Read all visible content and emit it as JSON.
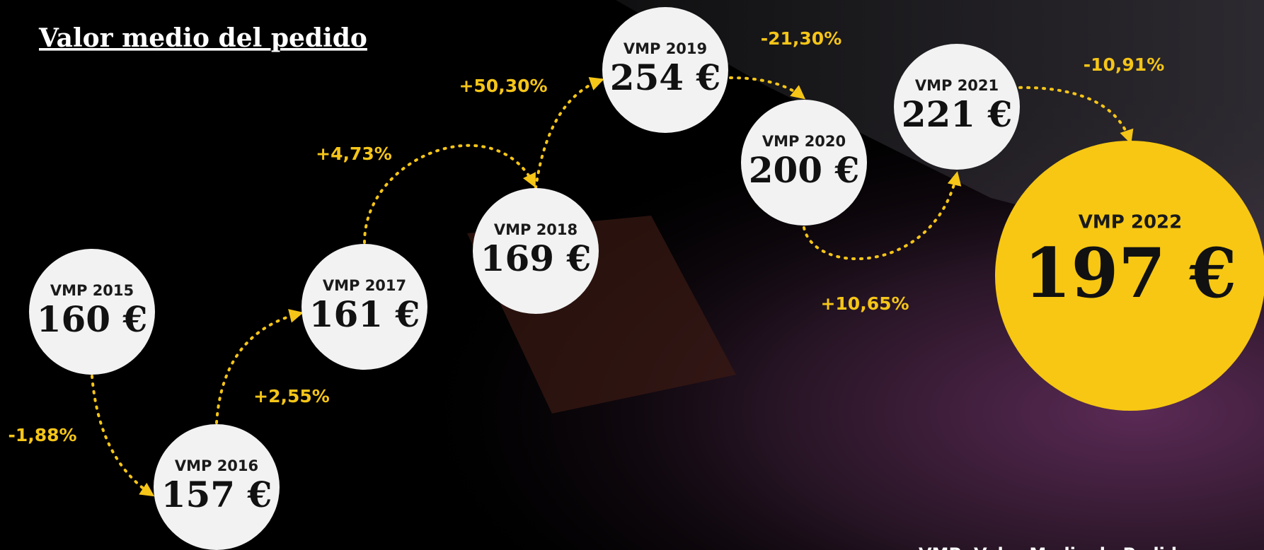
{
  "title": "Valor medio del pedido",
  "nodes": [
    {
      "label": "VMP 2015",
      "value": "160 €"
    },
    {
      "label": "VMP 2016",
      "value": "157 €"
    },
    {
      "label": "VMP 2017",
      "value": "161 €"
    },
    {
      "label": "VMP 2018",
      "value": "169 €"
    },
    {
      "label": "VMP 2019",
      "value": "254 €"
    },
    {
      "label": "VMP 2020",
      "value": "200 €"
    },
    {
      "label": "VMP 2021",
      "value": "221 €"
    },
    {
      "label": "VMP 2022",
      "value": "197 €"
    }
  ],
  "changes": [
    "-1,88%",
    "+2,55%",
    "+4,73%",
    "+50,30%",
    "-21,30%",
    "+10,65%",
    "-10,91%"
  ],
  "footnote": "VMP: Valor Medio de Pedido"
}
